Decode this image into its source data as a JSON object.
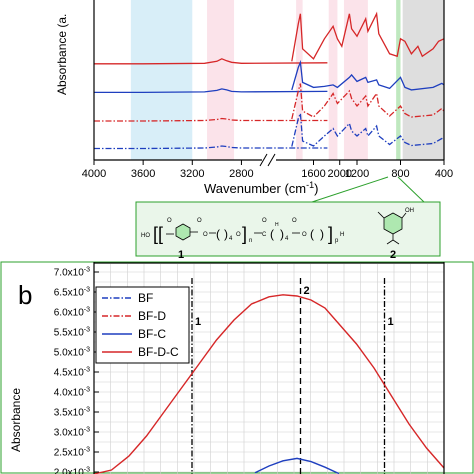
{
  "chart_data": [
    {
      "type": "line",
      "panel": "a",
      "xlabel": "Wavenumber (cm",
      "xlabel_sup": "-1",
      "xlabel_close": ")",
      "ylabel": "Absorbance (a.",
      "xlim": [
        4000,
        400
      ],
      "axis_break": [
        2000,
        2020
      ],
      "x_ticks": [
        "4000",
        "3600",
        "3200",
        "2800",
        "2000",
        "1600",
        "1200",
        "800",
        "400"
      ],
      "shaded_bands": [
        {
          "from": 3700,
          "to": 3200,
          "color": "#d8eef8"
        },
        {
          "from": 3080,
          "to": 2860,
          "color": "#fbe3ea"
        },
        {
          "from": 1760,
          "to": 1700,
          "color": "#fbe3ea"
        },
        {
          "from": 1460,
          "to": 1380,
          "color": "#fbe3ea"
        },
        {
          "from": 1320,
          "to": 1100,
          "color": "#fbe3ea"
        },
        {
          "from": 840,
          "to": 800,
          "color": "#bfe8bf"
        },
        {
          "from": 780,
          "to": 400,
          "color": "#dedede"
        }
      ],
      "series": [
        {
          "name": "BF-D-C",
          "color": "#d62728",
          "style": "solid",
          "offset": 0.82,
          "x": [
            4000,
            3600,
            3100,
            3000,
            2960,
            2920,
            2880,
            2800,
            2100,
            1800,
            1740,
            1720,
            1700,
            1600,
            1500,
            1420,
            1380,
            1340,
            1270,
            1250,
            1200,
            1120,
            1100,
            1020,
            1000,
            900,
            830,
            800,
            760,
            700,
            640,
            600,
            500,
            450,
            400
          ],
          "y": [
            0,
            0,
            0.01,
            0.05,
            0.1,
            0.06,
            0.03,
            0.01,
            0.02,
            0.05,
            0.8,
            1.0,
            0.3,
            0.1,
            0.5,
            0.75,
            0.5,
            0.35,
            1.0,
            0.7,
            0.55,
            0.9,
            0.65,
            1.0,
            0.6,
            0.2,
            0.15,
            0.5,
            0.45,
            0.2,
            0.35,
            0.15,
            0.3,
            0.45,
            0.5
          ]
        },
        {
          "name": "BF-C",
          "color": "#1f3fbf",
          "style": "solid",
          "offset": 0.56,
          "x": [
            4000,
            3600,
            3100,
            3000,
            2960,
            2920,
            2880,
            2800,
            2100,
            1800,
            1740,
            1720,
            1700,
            1600,
            1500,
            1420,
            1380,
            1270,
            1250,
            1200,
            1120,
            1100,
            1020,
            1000,
            900,
            800,
            760,
            700,
            500,
            420,
            400
          ],
          "y": [
            0,
            0,
            0.01,
            0.04,
            0.07,
            0.05,
            0.02,
            0.01,
            0.02,
            0.05,
            0.5,
            0.6,
            0.2,
            0.1,
            0.12,
            0.15,
            0.1,
            0.3,
            0.35,
            0.22,
            0.3,
            0.2,
            0.25,
            0.15,
            0.08,
            0.3,
            0.1,
            0.05,
            0.1,
            0.18,
            0.15
          ]
        },
        {
          "name": "BF-D",
          "color": "#d62728",
          "style": "dashdot",
          "offset": 0.3,
          "x": [
            4000,
            3600,
            3100,
            3000,
            2960,
            2920,
            2880,
            2800,
            2100,
            1800,
            1740,
            1720,
            1700,
            1600,
            1500,
            1420,
            1380,
            1270,
            1250,
            1200,
            1120,
            1100,
            1020,
            1000,
            900,
            800,
            760,
            700,
            500,
            420,
            400
          ],
          "y": [
            0,
            0,
            0.01,
            0.03,
            0.05,
            0.04,
            0.02,
            0.01,
            0.01,
            0.04,
            0.6,
            0.75,
            0.2,
            0.08,
            0.3,
            0.55,
            0.35,
            0.6,
            0.45,
            0.3,
            0.5,
            0.3,
            0.55,
            0.3,
            0.1,
            0.3,
            0.15,
            0.08,
            0.12,
            0.25,
            0.2
          ]
        },
        {
          "name": "BF",
          "color": "#1f3fbf",
          "style": "dashdot",
          "offset": 0.05,
          "x": [
            4000,
            3600,
            3100,
            3000,
            2960,
            2920,
            2880,
            2800,
            2100,
            1800,
            1740,
            1720,
            1700,
            1600,
            1500,
            1420,
            1380,
            1270,
            1250,
            1200,
            1120,
            1100,
            1020,
            1000,
            900,
            800,
            760,
            700,
            500,
            420,
            400
          ],
          "y": [
            0,
            0,
            0.01,
            0.03,
            0.05,
            0.04,
            0.02,
            0.01,
            0.01,
            0.04,
            0.6,
            0.7,
            0.15,
            0.05,
            0.25,
            0.4,
            0.25,
            0.5,
            0.35,
            0.25,
            0.4,
            0.25,
            0.45,
            0.25,
            0.08,
            0.25,
            0.12,
            0.06,
            0.1,
            0.2,
            0.18
          ]
        }
      ]
    },
    {
      "type": "line",
      "panel": "b",
      "ylabel": "Absorbance",
      "ylim": [
        0.00195,
        0.0072
      ],
      "xlim": [
        0,
        1
      ],
      "y_ticks": [
        {
          "value": 0.002,
          "mant": "2.0x10",
          "exp": "-3"
        },
        {
          "value": 0.0025,
          "mant": "2.5x10",
          "exp": "-3"
        },
        {
          "value": 0.003,
          "mant": "3.0x10",
          "exp": "-3"
        },
        {
          "value": 0.0035,
          "mant": "3.5x10",
          "exp": "-3"
        },
        {
          "value": 0.004,
          "mant": "4.0x10",
          "exp": "-3"
        },
        {
          "value": 0.0045,
          "mant": "4.5x10",
          "exp": "-3"
        },
        {
          "value": 0.005,
          "mant": "5.0x10",
          "exp": "-3"
        },
        {
          "value": 0.0055,
          "mant": "5.5x10",
          "exp": "-3"
        },
        {
          "value": 0.006,
          "mant": "6.0x10",
          "exp": "-3"
        },
        {
          "value": 0.0065,
          "mant": "6.5x10",
          "exp": "-3"
        },
        {
          "value": 0.007,
          "mant": "7.0x10",
          "exp": "-3"
        }
      ],
      "series": [
        {
          "name": "BF",
          "color": "#1f3fbf",
          "style": "dashdot",
          "x": [],
          "y": []
        },
        {
          "name": "BF-D",
          "color": "#d62728",
          "style": "dashdot",
          "x": [],
          "y": []
        },
        {
          "name": "BF-C",
          "color": "#1f3fbf",
          "style": "solid",
          "x": [
            0.46,
            0.5,
            0.54,
            0.58,
            0.62,
            0.66,
            0.7
          ],
          "y": [
            0.00198,
            0.00215,
            0.00228,
            0.00234,
            0.00226,
            0.00212,
            0.00196
          ]
        },
        {
          "name": "BF-D-C",
          "color": "#d62728",
          "style": "solid",
          "x": [
            0,
            0.05,
            0.1,
            0.15,
            0.2,
            0.25,
            0.3,
            0.35,
            0.4,
            0.45,
            0.5,
            0.54,
            0.58,
            0.62,
            0.66,
            0.7,
            0.75,
            0.8,
            0.85,
            0.9,
            0.95,
            1.0
          ],
          "y": [
            0.00195,
            0.00205,
            0.0024,
            0.0029,
            0.0035,
            0.0041,
            0.0047,
            0.0053,
            0.0058,
            0.0062,
            0.00638,
            0.00643,
            0.0064,
            0.0063,
            0.0061,
            0.0057,
            0.0052,
            0.0046,
            0.0039,
            0.0032,
            0.0026,
            0.0021
          ]
        }
      ],
      "reference_lines": [
        {
          "x": 0.28,
          "style": "dashdot",
          "label": "1"
        },
        {
          "x": 0.59,
          "style": "dashed",
          "label": "2"
        },
        {
          "x": 0.83,
          "style": "dashdot",
          "label": "1"
        }
      ]
    }
  ],
  "panel_b_label": "b",
  "structures": {
    "label_1": "1",
    "label_2": "2",
    "formula": {
      "ho": "HO",
      "o1": "O",
      "o2": "O",
      "o3": "O",
      "o4": "O",
      "o5": "O",
      "o6": "O",
      "o7": "O",
      "sub4a": "4",
      "sub4b": "4",
      "subn": "n",
      "subp": "p",
      "h2": "H",
      "c": "C",
      "h": "H",
      "oh": "OH"
    }
  }
}
